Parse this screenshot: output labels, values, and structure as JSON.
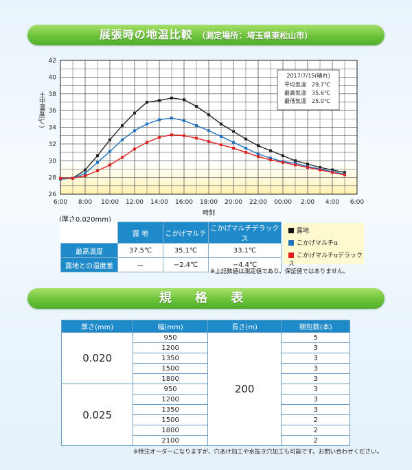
{
  "banner1": {
    "title": "展張時の地温比較",
    "subtitle": "（測定場所：埼玉県東松山市）"
  },
  "chart_data": {
    "type": "line",
    "xlabel": "時刻",
    "ylabel": "土中温度(℃)",
    "ylim": [
      26,
      42
    ],
    "yticks": [
      26,
      28,
      30,
      32,
      34,
      36,
      38,
      40,
      42
    ],
    "xticks": [
      "6:00",
      "8:00",
      "10:00",
      "12:00",
      "14:00",
      "16:00",
      "18:00",
      "20:00",
      "22:00",
      "00:00",
      "2:00",
      "4:00",
      "6:00"
    ],
    "x": [
      6,
      7,
      8,
      9,
      10,
      11,
      12,
      13,
      14,
      15,
      16,
      17,
      18,
      19,
      20,
      21,
      22,
      23,
      24,
      25,
      26,
      27,
      28,
      29
    ],
    "series": [
      {
        "name": "露地",
        "color": "#222222",
        "values": [
          27.8,
          27.9,
          28.9,
          30.6,
          32.5,
          34.2,
          35.7,
          37.0,
          37.2,
          37.5,
          37.3,
          36.5,
          35.5,
          34.4,
          33.5,
          32.6,
          31.8,
          31.2,
          30.6,
          30.0,
          29.6,
          29.2,
          28.9,
          28.6
        ]
      },
      {
        "name": "こかげマルチα",
        "color": "#1f73c1",
        "values": [
          27.8,
          27.9,
          28.5,
          29.8,
          31.1,
          32.5,
          33.6,
          34.4,
          34.9,
          35.1,
          34.8,
          34.2,
          33.6,
          32.9,
          32.2,
          31.5,
          30.8,
          30.3,
          29.9,
          29.7,
          29.3,
          29.0,
          28.7,
          28.4
        ]
      },
      {
        "name": "こかげマルチαデラックス",
        "color": "#e02020",
        "values": [
          27.9,
          27.9,
          28.2,
          28.8,
          29.5,
          30.4,
          31.4,
          32.2,
          32.8,
          33.1,
          33.0,
          32.7,
          32.3,
          31.9,
          31.5,
          31.0,
          30.5,
          30.1,
          29.8,
          29.5,
          29.2,
          28.9,
          28.6,
          28.3
        ]
      }
    ],
    "annotation": {
      "date": "2017/7/15(晴れ)",
      "lines": [
        [
          "平均気温",
          "29.7℃"
        ],
        [
          "最高気温",
          "35.6℃"
        ],
        [
          "最低気温",
          "25.0℃"
        ]
      ]
    },
    "grid": true
  },
  "thickness_label": "(厚さ0.020mm)",
  "temp_table": {
    "headers": [
      "露 地",
      "こかげマルチ",
      "こかげマルチデラックス"
    ],
    "rows": [
      {
        "label": "最高温度",
        "values": [
          "37.5℃",
          "35.1℃",
          "33.1℃"
        ]
      },
      {
        "label": "露地との温度差",
        "values": [
          "ー",
          "−2.4℃",
          "−4.4℃"
        ]
      }
    ]
  },
  "legend": [
    {
      "label": "露地",
      "color": "#111111"
    },
    {
      "label": "こかげマルチα",
      "color": "#1f73c1"
    },
    {
      "label": "こかげマルチαデラックス",
      "color": "#e02020"
    }
  ],
  "note1": "※上記数値は測定値であり、保証値ではありません。",
  "banner2": {
    "title": "規 格 表"
  },
  "spec_table": {
    "headers": [
      "厚さ(mm)",
      "幅(mm)",
      "長さ(m)",
      "梱包数(本)"
    ],
    "length": "200",
    "groups": [
      {
        "thickness": "0.020",
        "rows": [
          [
            "950",
            "5"
          ],
          [
            "1200",
            "3"
          ],
          [
            "1350",
            "3"
          ],
          [
            "1500",
            "3"
          ],
          [
            "1800",
            "3"
          ]
        ]
      },
      {
        "thickness": "0.025",
        "rows": [
          [
            "950",
            "3"
          ],
          [
            "1200",
            "3"
          ],
          [
            "1350",
            "3"
          ],
          [
            "1500",
            "2"
          ],
          [
            "1800",
            "2"
          ],
          [
            "2100",
            "2"
          ]
        ]
      }
    ]
  },
  "note2": "※特注オーダーになりますが、穴あけ加工や水抜き穴加工も可能です。お問い合わせください。"
}
